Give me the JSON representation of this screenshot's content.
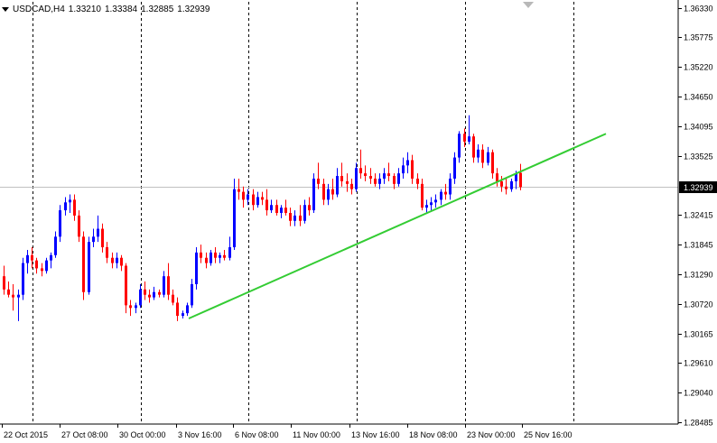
{
  "header": {
    "symbol": "USDCAD,H4",
    "open": "1.33210",
    "high": "1.33384",
    "low": "1.32885",
    "close": "1.32939",
    "dropdown_icon": "triangle-down-icon"
  },
  "current_price_label": "1.32939",
  "colors": {
    "bull": "#0000ff",
    "bear": "#ff0000",
    "trendline": "#33cc33",
    "axis": "#000000",
    "grid": "#000000",
    "bid_line": "#c0c0c0"
  },
  "chart_data": {
    "type": "candlestick",
    "ylim": [
      1.2845,
      1.3645
    ],
    "yticks": [
      "1.36330",
      "1.35775",
      "1.35220",
      "1.34650",
      "1.34095",
      "1.33525",
      "1.32939",
      "1.32415",
      "1.31845",
      "1.31290",
      "1.30720",
      "1.30165",
      "1.29610",
      "1.29040",
      "1.28485"
    ],
    "xticks": [
      "22 Oct 2015",
      "27 Oct 08:00",
      "30 Oct 00:00",
      "3 Nov 16:00",
      "6 Nov 08:00",
      "11 Nov 00:00",
      "13 Nov 16:00",
      "18 Nov 08:00",
      "23 Nov 00:00",
      "25 Nov 16:00"
    ],
    "period_separators": 6,
    "trendline": {
      "from": [
        0,
        1.3045
      ],
      "to": [
        1,
        1.3395
      ]
    },
    "candles": [
      [
        1.3125,
        1.3145,
        1.309,
        1.31
      ],
      [
        1.31,
        1.3115,
        1.3085,
        1.309
      ],
      [
        1.309,
        1.311,
        1.306,
        1.3085
      ],
      [
        1.3085,
        1.31,
        1.304,
        1.309
      ],
      [
        1.309,
        1.316,
        1.308,
        1.315
      ],
      [
        1.315,
        1.3175,
        1.313,
        1.3165
      ],
      [
        1.3165,
        1.318,
        1.314,
        1.3155
      ],
      [
        1.3155,
        1.316,
        1.313,
        1.314
      ],
      [
        1.314,
        1.315,
        1.3125,
        1.3135
      ],
      [
        1.3135,
        1.316,
        1.313,
        1.3155
      ],
      [
        1.3155,
        1.317,
        1.314,
        1.3165
      ],
      [
        1.3165,
        1.321,
        1.316,
        1.32
      ],
      [
        1.32,
        1.326,
        1.319,
        1.325
      ],
      [
        1.325,
        1.3275,
        1.324,
        1.3265
      ],
      [
        1.3265,
        1.328,
        1.3245,
        1.327
      ],
      [
        1.327,
        1.328,
        1.323,
        1.324
      ],
      [
        1.324,
        1.325,
        1.319,
        1.32
      ],
      [
        1.32,
        1.321,
        1.308,
        1.3095
      ],
      [
        1.3095,
        1.32,
        1.309,
        1.319
      ],
      [
        1.319,
        1.3215,
        1.318,
        1.32
      ],
      [
        1.32,
        1.324,
        1.319,
        1.3215
      ],
      [
        1.3215,
        1.3225,
        1.317,
        1.318
      ],
      [
        1.318,
        1.319,
        1.315,
        1.316
      ],
      [
        1.316,
        1.317,
        1.314,
        1.315
      ],
      [
        1.315,
        1.317,
        1.314,
        1.316
      ],
      [
        1.316,
        1.3165,
        1.3135,
        1.3145
      ],
      [
        1.3145,
        1.315,
        1.3055,
        1.307
      ],
      [
        1.307,
        1.308,
        1.305,
        1.3065
      ],
      [
        1.3065,
        1.3075,
        1.3055,
        1.307
      ],
      [
        1.307,
        1.311,
        1.3065,
        1.31
      ],
      [
        1.31,
        1.3115,
        1.308,
        1.309
      ],
      [
        1.309,
        1.31,
        1.3075,
        1.3085
      ],
      [
        1.3085,
        1.3105,
        1.308,
        1.3095
      ],
      [
        1.3095,
        1.31,
        1.3085,
        1.309
      ],
      [
        1.309,
        1.3135,
        1.3085,
        1.3125
      ],
      [
        1.3125,
        1.315,
        1.308,
        1.309
      ],
      [
        1.309,
        1.31,
        1.307,
        1.3075
      ],
      [
        1.3075,
        1.3085,
        1.304,
        1.305
      ],
      [
        1.305,
        1.306,
        1.3045,
        1.3055
      ],
      [
        1.3055,
        1.3075,
        1.305,
        1.307
      ],
      [
        1.307,
        1.312,
        1.3065,
        1.311
      ],
      [
        1.311,
        1.318,
        1.31,
        1.317
      ],
      [
        1.317,
        1.3185,
        1.315,
        1.316
      ],
      [
        1.316,
        1.317,
        1.314,
        1.315
      ],
      [
        1.315,
        1.3175,
        1.3145,
        1.317
      ],
      [
        1.317,
        1.318,
        1.315,
        1.316
      ],
      [
        1.316,
        1.317,
        1.315,
        1.3165
      ],
      [
        1.3165,
        1.3175,
        1.3155,
        1.316
      ],
      [
        1.316,
        1.32,
        1.3155,
        1.318
      ],
      [
        1.318,
        1.331,
        1.3175,
        1.329
      ],
      [
        1.329,
        1.331,
        1.327,
        1.3285
      ],
      [
        1.3285,
        1.3295,
        1.3255,
        1.327
      ],
      [
        1.327,
        1.329,
        1.326,
        1.328
      ],
      [
        1.328,
        1.329,
        1.325,
        1.326
      ],
      [
        1.326,
        1.3285,
        1.3255,
        1.3275
      ],
      [
        1.3275,
        1.3285,
        1.326,
        1.327
      ],
      [
        1.327,
        1.329,
        1.324,
        1.325
      ],
      [
        1.325,
        1.327,
        1.3245,
        1.326
      ],
      [
        1.326,
        1.327,
        1.324,
        1.3245
      ],
      [
        1.3245,
        1.326,
        1.3235,
        1.3255
      ],
      [
        1.3255,
        1.327,
        1.324,
        1.3245
      ],
      [
        1.3245,
        1.3255,
        1.322,
        1.323
      ],
      [
        1.323,
        1.325,
        1.322,
        1.324
      ],
      [
        1.324,
        1.326,
        1.322,
        1.323
      ],
      [
        1.323,
        1.327,
        1.3225,
        1.326
      ],
      [
        1.326,
        1.3275,
        1.324,
        1.325
      ],
      [
        1.325,
        1.332,
        1.3245,
        1.331
      ],
      [
        1.331,
        1.334,
        1.329,
        1.33
      ],
      [
        1.33,
        1.331,
        1.326,
        1.327
      ],
      [
        1.327,
        1.33,
        1.326,
        1.329
      ],
      [
        1.329,
        1.331,
        1.327,
        1.328
      ],
      [
        1.328,
        1.333,
        1.3275,
        1.3315
      ],
      [
        1.3315,
        1.334,
        1.3295,
        1.3305
      ],
      [
        1.3305,
        1.332,
        1.3285,
        1.33
      ],
      [
        1.33,
        1.331,
        1.328,
        1.329
      ],
      [
        1.329,
        1.334,
        1.3285,
        1.333
      ],
      [
        1.333,
        1.3365,
        1.331,
        1.332
      ],
      [
        1.332,
        1.3335,
        1.3305,
        1.3315
      ],
      [
        1.3315,
        1.333,
        1.33,
        1.331
      ],
      [
        1.331,
        1.332,
        1.3295,
        1.33
      ],
      [
        1.33,
        1.332,
        1.329,
        1.331
      ],
      [
        1.331,
        1.333,
        1.33,
        1.332
      ],
      [
        1.332,
        1.334,
        1.3305,
        1.3315
      ],
      [
        1.3315,
        1.332,
        1.329,
        1.33
      ],
      [
        1.33,
        1.333,
        1.3295,
        1.332
      ],
      [
        1.332,
        1.335,
        1.331,
        1.3335
      ],
      [
        1.3335,
        1.336,
        1.332,
        1.3345
      ],
      [
        1.3345,
        1.3355,
        1.33,
        1.331
      ],
      [
        1.331,
        1.332,
        1.329,
        1.33
      ],
      [
        1.33,
        1.331,
        1.325,
        1.3255
      ],
      [
        1.3255,
        1.327,
        1.3245,
        1.326
      ],
      [
        1.326,
        1.3275,
        1.325,
        1.3265
      ],
      [
        1.3265,
        1.328,
        1.3255,
        1.327
      ],
      [
        1.327,
        1.329,
        1.326,
        1.3285
      ],
      [
        1.3285,
        1.33,
        1.327,
        1.328
      ],
      [
        1.328,
        1.332,
        1.327,
        1.331
      ],
      [
        1.331,
        1.336,
        1.33,
        1.335
      ],
      [
        1.335,
        1.34,
        1.334,
        1.3395
      ],
      [
        1.3395,
        1.3405,
        1.337,
        1.338
      ],
      [
        1.338,
        1.343,
        1.3375,
        1.339
      ],
      [
        1.339,
        1.3395,
        1.334,
        1.335
      ],
      [
        1.335,
        1.3375,
        1.334,
        1.3365
      ],
      [
        1.3365,
        1.3375,
        1.333,
        1.334
      ],
      [
        1.334,
        1.337,
        1.3335,
        1.336
      ],
      [
        1.336,
        1.3365,
        1.331,
        1.332
      ],
      [
        1.332,
        1.333,
        1.3295,
        1.3305
      ],
      [
        1.3305,
        1.3315,
        1.3285,
        1.3295
      ],
      [
        1.3295,
        1.331,
        1.328,
        1.329
      ],
      [
        1.329,
        1.331,
        1.3285,
        1.3305
      ],
      [
        1.3305,
        1.3325,
        1.329,
        1.332
      ],
      [
        1.3321,
        1.3338,
        1.3288,
        1.3294
      ]
    ]
  }
}
